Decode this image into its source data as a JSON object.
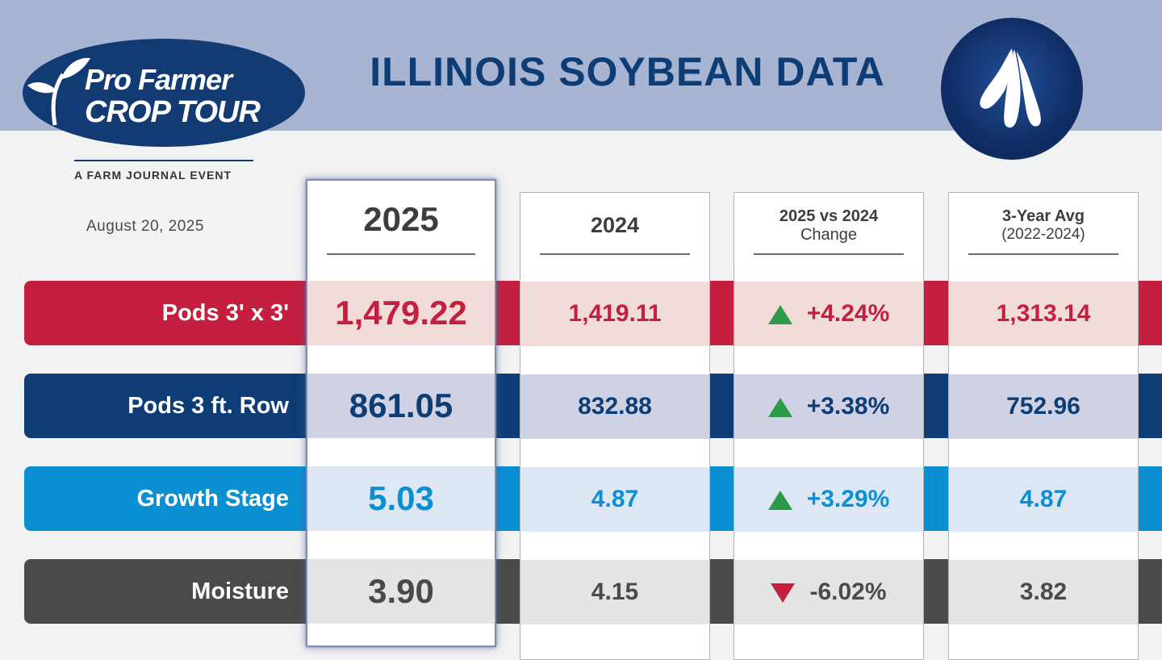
{
  "logo": {
    "line1": "Pro Farmer",
    "line2": "CROP TOUR",
    "tagline": "A FARM JOURNAL EVENT"
  },
  "title": "ILLINOIS SOYBEAN DATA",
  "date": "August 20, 2025",
  "colors": {
    "header": "#a7b4d2",
    "navy": "#0e3d75",
    "red": "#c41f3e",
    "blue": "#0b8fd3",
    "gray": "#4a4a4a",
    "up": "#2e9a47",
    "down": "#c41f3e"
  },
  "columns": {
    "c2025": "2025",
    "c2024": "2024",
    "change_line1": "2025 vs 2024",
    "change_line2": "Change",
    "avg_line1": "3-Year Avg",
    "avg_line2": "(2022-2024)"
  },
  "rows": [
    {
      "label": "Pods 3' x 3'",
      "v2025": "1,479.22",
      "v2024": "1,419.11",
      "change": "+4.24%",
      "direction": "up",
      "avg": "1,313.14"
    },
    {
      "label": "Pods 3 ft. Row",
      "v2025": "861.05",
      "v2024": "832.88",
      "change": "+3.38%",
      "direction": "up",
      "avg": "752.96"
    },
    {
      "label": "Growth Stage",
      "v2025": "5.03",
      "v2024": "4.87",
      "change": "+3.29%",
      "direction": "up",
      "avg": "4.87"
    },
    {
      "label": "Moisture",
      "v2025": "3.90",
      "v2024": "4.15",
      "change": "-6.02%",
      "direction": "down",
      "avg": "3.82"
    }
  ]
}
